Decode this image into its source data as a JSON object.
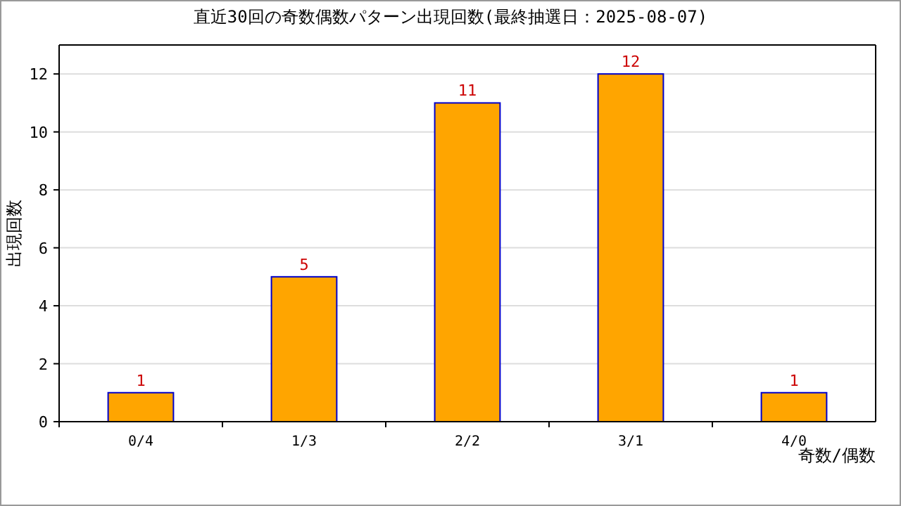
{
  "chart_data": {
    "type": "bar",
    "title": "直近30回の奇数偶数パターン出現回数(最終抽選日：2025-08-07)",
    "xlabel": "奇数/偶数",
    "ylabel": "出現回数",
    "categories": [
      "0/4",
      "1/3",
      "2/2",
      "3/1",
      "4/0"
    ],
    "values": [
      1,
      5,
      11,
      12,
      1
    ],
    "color": "#ffa500",
    "ylim": [
      0,
      13
    ],
    "yticks": [
      0,
      2,
      4,
      6,
      8,
      10,
      12
    ],
    "grid": "y",
    "data_labels": true
  }
}
